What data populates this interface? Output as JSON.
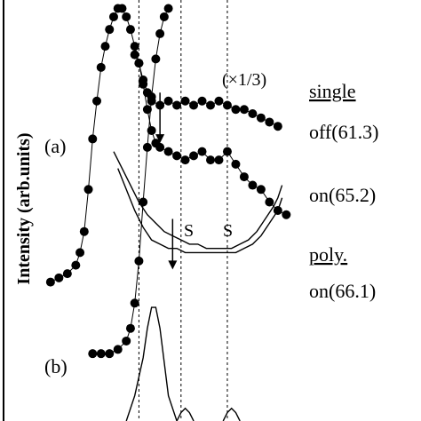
{
  "chart_data": {
    "type": "scatter",
    "ylabel": "Intensity (arb.units)",
    "panel_labels": [
      "(a)",
      "(b)"
    ],
    "annotations": {
      "scale_factor": "(×1/3)",
      "s_marker_1": "S",
      "s_marker_2": "S",
      "single_label": "single",
      "single_off": "off(61.3)",
      "single_on": "on(65.2)",
      "poly_label": "poly.",
      "poly_on": "on(66.1)"
    },
    "xlim": [
      0,
      100
    ],
    "ylim": [
      0,
      100
    ],
    "grid": false,
    "vertical_guides": [
      33,
      43,
      54
    ],
    "series": [
      {
        "marker": "dot",
        "values": [
          [
            12,
            33
          ],
          [
            14,
            34
          ],
          [
            16,
            35
          ],
          [
            18,
            37
          ],
          [
            19,
            40
          ],
          [
            20,
            45
          ],
          [
            21,
            55
          ],
          [
            22,
            67
          ],
          [
            23,
            76
          ],
          [
            24,
            84
          ],
          [
            25,
            89
          ],
          [
            26,
            93
          ],
          [
            27,
            96
          ],
          [
            28,
            98
          ],
          [
            29,
            98
          ],
          [
            30,
            96
          ],
          [
            31,
            93
          ],
          [
            32,
            89
          ],
          [
            33,
            85
          ],
          [
            34,
            81
          ],
          [
            35,
            78
          ],
          [
            36,
            76
          ],
          [
            38,
            75
          ],
          [
            40,
            76
          ],
          [
            42,
            75
          ],
          [
            44,
            76
          ],
          [
            46,
            75
          ],
          [
            48,
            76
          ],
          [
            50,
            75
          ],
          [
            52,
            76
          ],
          [
            54,
            75
          ],
          [
            56,
            74
          ],
          [
            58,
            74
          ],
          [
            60,
            73
          ],
          [
            62,
            72
          ],
          [
            64,
            71
          ],
          [
            66,
            70
          ]
        ]
      },
      {
        "marker": "dot",
        "values": [
          [
            32,
            87
          ],
          [
            33,
            85
          ],
          [
            34,
            80
          ],
          [
            35,
            74
          ],
          [
            36,
            69
          ],
          [
            37,
            66
          ],
          [
            38,
            65
          ],
          [
            40,
            64
          ],
          [
            42,
            63
          ],
          [
            44,
            62
          ],
          [
            46,
            63
          ],
          [
            48,
            64
          ],
          [
            50,
            62
          ],
          [
            52,
            62
          ],
          [
            54,
            64
          ],
          [
            56,
            61
          ],
          [
            58,
            58
          ],
          [
            60,
            56
          ],
          [
            62,
            55
          ],
          [
            64,
            52
          ],
          [
            66,
            50
          ],
          [
            68,
            49
          ]
        ]
      },
      {
        "marker": "line",
        "values": [
          [
            27,
            64
          ],
          [
            29,
            60
          ],
          [
            31,
            56
          ],
          [
            33,
            52
          ],
          [
            35,
            49
          ],
          [
            37,
            47
          ],
          [
            39,
            45
          ],
          [
            41,
            44
          ],
          [
            43,
            43
          ],
          [
            45,
            42
          ],
          [
            47,
            42
          ],
          [
            49,
            41
          ],
          [
            51,
            41
          ],
          [
            53,
            41
          ],
          [
            55,
            41
          ],
          [
            57,
            42
          ],
          [
            59,
            43
          ],
          [
            61,
            45
          ],
          [
            63,
            48
          ],
          [
            65,
            51
          ],
          [
            66,
            53
          ],
          [
            67,
            56
          ]
        ]
      },
      {
        "marker": "line",
        "values": [
          [
            28,
            60
          ],
          [
            30,
            55
          ],
          [
            32,
            50
          ],
          [
            34,
            46
          ],
          [
            36,
            43
          ],
          [
            38,
            42
          ],
          [
            40,
            41
          ],
          [
            42,
            41
          ],
          [
            44,
            40
          ],
          [
            46,
            40
          ],
          [
            48,
            40
          ],
          [
            50,
            40
          ],
          [
            52,
            40
          ],
          [
            54,
            40
          ],
          [
            56,
            40
          ],
          [
            58,
            41
          ],
          [
            60,
            42
          ],
          [
            62,
            44
          ],
          [
            64,
            47
          ],
          [
            66,
            50
          ],
          [
            67,
            53
          ]
        ]
      },
      {
        "marker": "dot",
        "values": [
          [
            22,
            16
          ],
          [
            24,
            16
          ],
          [
            26,
            16
          ],
          [
            28,
            17
          ],
          [
            30,
            19
          ],
          [
            31,
            22
          ],
          [
            32,
            28
          ],
          [
            33,
            38
          ],
          [
            34,
            52
          ],
          [
            35,
            65
          ],
          [
            36,
            77
          ],
          [
            37,
            86
          ],
          [
            38,
            92
          ],
          [
            39,
            96
          ],
          [
            40,
            98
          ]
        ]
      },
      {
        "marker": "line",
        "values": [
          [
            30,
            0
          ],
          [
            32,
            6
          ],
          [
            34,
            15
          ],
          [
            35,
            22
          ],
          [
            36,
            27
          ],
          [
            37,
            27
          ],
          [
            38,
            22
          ],
          [
            39,
            14
          ],
          [
            40,
            6
          ],
          [
            42,
            0
          ]
        ]
      },
      {
        "marker": "line",
        "values": [
          [
            42,
            0
          ],
          [
            43,
            2
          ],
          [
            44,
            3
          ],
          [
            45,
            2
          ],
          [
            46,
            0
          ]
        ]
      },
      {
        "marker": "line",
        "values": [
          [
            53,
            0
          ],
          [
            54,
            2
          ],
          [
            55,
            3
          ],
          [
            56,
            2
          ],
          [
            57,
            0
          ]
        ]
      }
    ]
  }
}
